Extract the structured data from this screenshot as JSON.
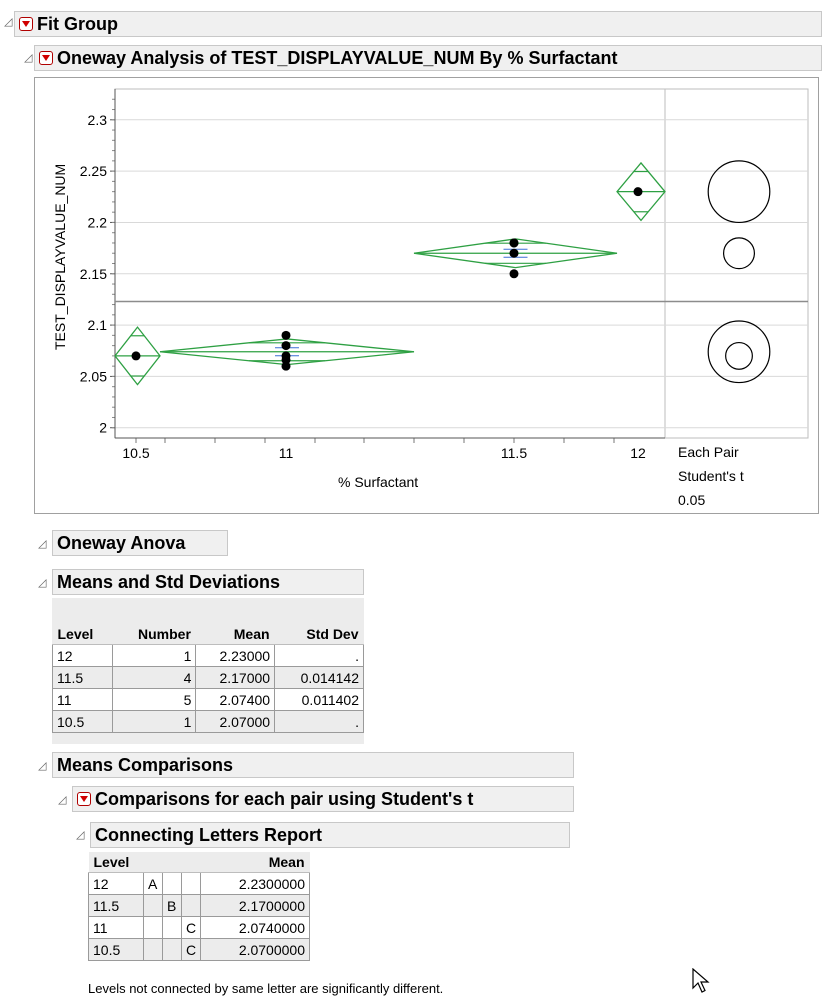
{
  "fit_group": {
    "title": "Fit Group"
  },
  "oneway": {
    "title": "Oneway Analysis of TEST_DISPLAYVALUE_NUM By % Surfactant",
    "ylabel": "TEST_DISPLAYVALUE_NUM",
    "xlabel": "% Surfactant",
    "y_ticks": [
      "2.3",
      "2.25",
      "2.2",
      "2.15",
      "2.1",
      "2.05",
      "2"
    ],
    "x_ticks": [
      "10.5",
      "11",
      "11.5",
      "12"
    ],
    "compare_label": [
      "Each Pair",
      "Student's t",
      "0.05"
    ]
  },
  "chart_data": {
    "type": "scatter",
    "title": "Oneway Analysis of TEST_DISPLAYVALUE_NUM By % Surfactant",
    "xlabel": "% Surfactant",
    "ylabel": "TEST_DISPLAYVALUE_NUM",
    "ylim": [
      1.99,
      2.33
    ],
    "y_ticks": [
      2,
      2.05,
      2.1,
      2.15,
      2.2,
      2.25,
      2.3
    ],
    "grand_mean": 2.123,
    "groups": [
      {
        "level": "10.5",
        "points": [
          2.07
        ],
        "mean": 2.07,
        "diamond_half": 0.028
      },
      {
        "level": "11",
        "points": [
          2.06,
          2.07,
          2.08,
          2.09,
          2.066
        ],
        "mean": 2.074,
        "diamond_half": 0.0125
      },
      {
        "level": "11.5",
        "points": [
          2.15,
          2.17,
          2.18,
          2.18
        ],
        "mean": 2.17,
        "diamond_half": 0.014
      },
      {
        "level": "12",
        "points": [
          2.23
        ],
        "mean": 2.23,
        "diamond_half": 0.028
      }
    ],
    "comparison_circles": [
      {
        "center": 2.23,
        "radius": 0.03
      },
      {
        "center": 2.17,
        "radius": 0.015
      },
      {
        "center": 2.074,
        "radius": 0.03
      },
      {
        "center": 2.07,
        "radius": 0.013
      }
    ]
  },
  "oneway_anova": {
    "title": "Oneway Anova"
  },
  "means_std": {
    "title": "Means and Std Deviations",
    "columns": [
      "Level",
      "Number",
      "Mean",
      "Std Dev"
    ],
    "rows": [
      [
        "12",
        "1",
        "2.23000",
        "."
      ],
      [
        "11.5",
        "4",
        "2.17000",
        "0.014142"
      ],
      [
        "11",
        "5",
        "2.07400",
        "0.011402"
      ],
      [
        "10.5",
        "1",
        "2.07000",
        "."
      ]
    ]
  },
  "means_comparisons": {
    "title": "Means Comparisons"
  },
  "pairs": {
    "title": "Comparisons for each pair using Student's t"
  },
  "connecting": {
    "title": "Connecting Letters Report",
    "columns": [
      "Level",
      "Mean"
    ],
    "rows": [
      [
        "12",
        "A",
        "",
        "",
        "2.2300000"
      ],
      [
        "11.5",
        "",
        "B",
        "",
        "2.1700000"
      ],
      [
        "11",
        "",
        "",
        "C",
        "2.0740000"
      ],
      [
        "10.5",
        "",
        "",
        "C",
        "2.0700000"
      ]
    ],
    "note": "Levels not connected by same letter are significantly different."
  },
  "colors": {
    "diamond": "#2ea043",
    "point": "#000000",
    "redbutton": "#d00000"
  }
}
